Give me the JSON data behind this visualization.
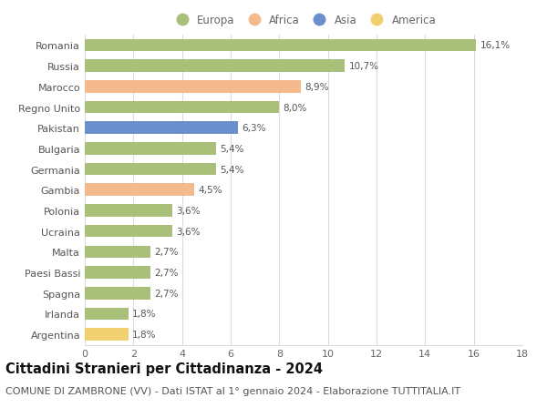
{
  "countries": [
    "Romania",
    "Russia",
    "Marocco",
    "Regno Unito",
    "Pakistan",
    "Bulgaria",
    "Germania",
    "Gambia",
    "Polonia",
    "Ucraina",
    "Malta",
    "Paesi Bassi",
    "Spagna",
    "Irlanda",
    "Argentina"
  ],
  "values": [
    16.1,
    10.7,
    8.9,
    8.0,
    6.3,
    5.4,
    5.4,
    4.5,
    3.6,
    3.6,
    2.7,
    2.7,
    2.7,
    1.8,
    1.8
  ],
  "labels": [
    "16,1%",
    "10,7%",
    "8,9%",
    "8,0%",
    "6,3%",
    "5,4%",
    "5,4%",
    "4,5%",
    "3,6%",
    "3,6%",
    "2,7%",
    "2,7%",
    "2,7%",
    "1,8%",
    "1,8%"
  ],
  "colors": [
    "#a8c07a",
    "#a8c07a",
    "#f5b98e",
    "#a8c07a",
    "#6a8fcc",
    "#a8c07a",
    "#a8c07a",
    "#f5b98e",
    "#a8c07a",
    "#a8c07a",
    "#a8c07a",
    "#a8c07a",
    "#a8c07a",
    "#a8c07a",
    "#f0d070"
  ],
  "continent_labels": [
    "Europa",
    "Africa",
    "Asia",
    "America"
  ],
  "continent_colors": [
    "#a8c07a",
    "#f5b98e",
    "#6a8fcc",
    "#f0d070"
  ],
  "xlim": [
    0,
    18
  ],
  "xticks": [
    0,
    2,
    4,
    6,
    8,
    10,
    12,
    14,
    16,
    18
  ],
  "title": "Cittadini Stranieri per Cittadinanza - 2024",
  "subtitle": "COMUNE DI ZAMBRONE (VV) - Dati ISTAT al 1° gennaio 2024 - Elaborazione TUTTITALIA.IT",
  "bg_color": "#ffffff",
  "grid_color": "#dddddd",
  "bar_height": 0.6,
  "title_fontsize": 10.5,
  "subtitle_fontsize": 8,
  "label_fontsize": 7.5,
  "tick_fontsize": 8,
  "legend_fontsize": 8.5
}
